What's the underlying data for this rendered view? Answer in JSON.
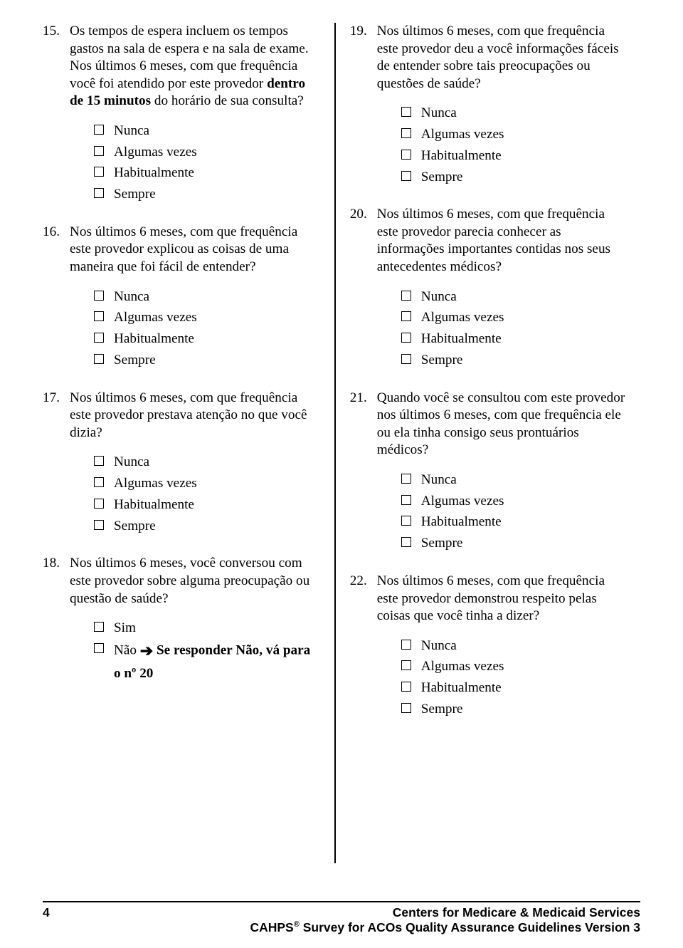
{
  "left": {
    "q15": {
      "num": "15.",
      "text_a": "Os tempos de espera incluem os tempos gastos na sala de espera e na sala de exame. Nos últimos 6 meses, com que frequência você foi atendido por este provedor ",
      "text_bold": "dentro de 15 minutos",
      "text_b": " do horário de sua consulta?",
      "opts": [
        "Nunca",
        "Algumas vezes",
        "Habitualmente",
        "Sempre"
      ]
    },
    "q16": {
      "num": "16.",
      "text": "Nos últimos 6 meses, com que frequência este provedor explicou as coisas de uma maneira que foi fácil de entender?",
      "opts": [
        "Nunca",
        "Algumas vezes",
        "Habitualmente",
        "Sempre"
      ]
    },
    "q17": {
      "num": "17.",
      "text": "Nos últimos 6 meses, com que frequência este provedor prestava atenção no que você dizia?",
      "opts": [
        "Nunca",
        "Algumas vezes",
        "Habitualmente",
        "Sempre"
      ]
    },
    "q18": {
      "num": "18.",
      "text": "Nos últimos 6 meses, você conversou com este provedor sobre alguma preocupação ou questão de saúde?",
      "opt_yes": "Sim",
      "opt_no": "Não ",
      "skip": "Se responder Não, vá para o nº 20"
    }
  },
  "right": {
    "q19": {
      "num": "19.",
      "text": "Nos últimos 6 meses, com que frequência este provedor deu a você informações fáceis de entender sobre tais preocupações ou questões de saúde?",
      "opts": [
        "Nunca",
        "Algumas vezes",
        "Habitualmente",
        "Sempre"
      ]
    },
    "q20": {
      "num": "20.",
      "text": "Nos últimos 6 meses, com que frequência este provedor parecia conhecer as informações importantes contidas nos seus antecedentes médicos?",
      "opts": [
        "Nunca",
        "Algumas vezes",
        "Habitualmente",
        "Sempre"
      ]
    },
    "q21": {
      "num": "21.",
      "text": "Quando você se consultou com este provedor nos últimos 6 meses, com que frequência ele ou ela tinha consigo seus prontuários médicos?",
      "opts": [
        "Nunca",
        "Algumas vezes",
        "Habitualmente",
        "Sempre"
      ]
    },
    "q22": {
      "num": "22.",
      "text": "Nos últimos 6 meses, com que frequência este provedor demonstrou respeito pelas coisas que você tinha a dizer?",
      "opts": [
        "Nunca",
        "Algumas vezes",
        "Habitualmente",
        "Sempre"
      ]
    }
  },
  "footer": {
    "page": "4",
    "line1": "Centers for Medicare & Medicaid Services",
    "line2a": "CAHPS",
    "line2b": " Survey for ACOs Quality Assurance Guidelines Version 3",
    "reg": "®"
  }
}
